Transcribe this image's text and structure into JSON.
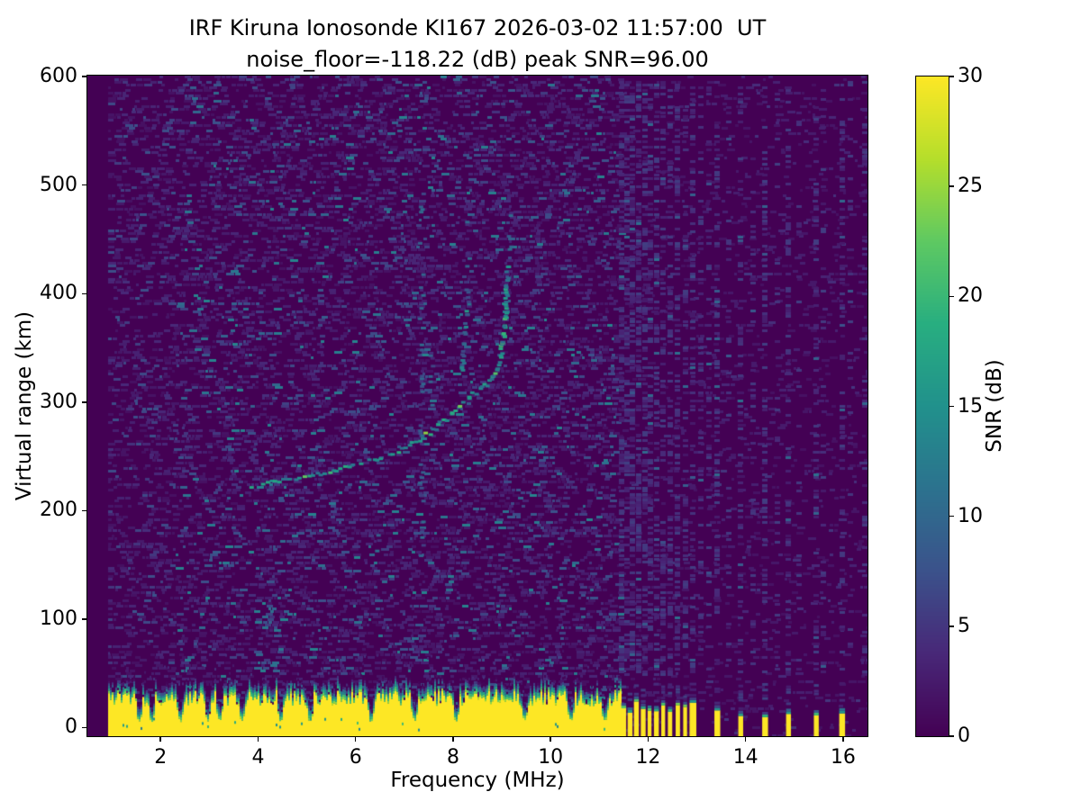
{
  "figure": {
    "background": "#ffffff",
    "text_color": "#000000"
  },
  "chart_data": {
    "type": "heatmap",
    "title": "IRF Kiruna Ionosonde KI167 2026-03-02 11:57:00  UT",
    "subtitle": "noise_floor=-118.22 (dB) peak SNR=96.00",
    "xlabel": "Frequency (MHz)",
    "ylabel": "Virtual range (km)",
    "xlim": [
      0.5,
      16.5
    ],
    "ylim": [
      -8,
      601
    ],
    "xticks": [
      2,
      4,
      6,
      8,
      10,
      12,
      14,
      16
    ],
    "yticks": [
      0,
      100,
      200,
      300,
      400,
      500,
      600
    ],
    "grid": false,
    "colormap": "viridis",
    "background_value_color": "#440154",
    "saturated_value_color": "#fde725",
    "colorbar": {
      "label": "SNR (dB)",
      "min": 0,
      "max": 30,
      "ticks": [
        0,
        5,
        10,
        15,
        20,
        25,
        30
      ],
      "position": "right"
    },
    "sounding": {
      "start_mhz": 0.93,
      "stop_mhz": 16.5,
      "quiet_above_mhz": 11.42,
      "low_f_bright_below_mhz": 2.3
    },
    "ionogram_traces": {
      "o_mode_f_layer": [
        [
          3.75,
          222
        ],
        [
          4.2,
          226
        ],
        [
          4.7,
          230
        ],
        [
          5.2,
          235
        ],
        [
          5.7,
          240
        ],
        [
          6.2,
          246
        ],
        [
          6.7,
          253
        ],
        [
          7.1,
          261
        ],
        [
          7.45,
          271
        ],
        [
          7.8,
          283
        ],
        [
          8.1,
          296
        ],
        [
          8.35,
          306
        ],
        [
          8.6,
          314
        ],
        [
          8.8,
          322
        ],
        [
          8.95,
          338
        ],
        [
          9.03,
          360
        ],
        [
          9.08,
          385
        ],
        [
          9.1,
          410
        ],
        [
          9.12,
          428
        ]
      ],
      "x_mode_f_layer": [
        [
          8.18,
          330
        ],
        [
          8.22,
          350
        ],
        [
          8.26,
          372
        ],
        [
          8.3,
          392
        ],
        [
          8.33,
          405
        ]
      ]
    },
    "echo_streaks": [
      {
        "freq_mhz": 7.35,
        "range_km": [
          150,
          500
        ],
        "density": 0.2
      },
      {
        "freq_mhz": 7.55,
        "range_km": [
          260,
          430
        ],
        "density": 0.16
      },
      {
        "freq_mhz": 8.3,
        "range_km": [
          400,
          470
        ],
        "density": 0.18
      },
      {
        "freq_mhz": 9.15,
        "range_km": [
          430,
          505
        ],
        "density": 0.16
      },
      {
        "freq_mhz": 6.45,
        "range_km": [
          140,
          230
        ],
        "density": 0.1
      }
    ],
    "ground_echo_band": {
      "solid_from_mhz": 0.93,
      "solid_to_mhz": 11.42,
      "mean_top_km": 30,
      "notch_freqs_mhz": [
        1.55,
        1.8,
        2.4,
        2.95,
        3.2,
        3.65,
        4.45,
        5.05,
        6.3,
        7.2,
        8.05,
        9.45,
        10.4,
        11.1
      ]
    },
    "rfi_comb_bars": [
      {
        "f": 11.5,
        "w": 0.1
      },
      {
        "f": 11.63,
        "w": 0.1
      },
      {
        "f": 11.76,
        "w": 0.1
      },
      {
        "f": 11.9,
        "w": 0.1
      },
      {
        "f": 12.03,
        "w": 0.08
      },
      {
        "f": 12.17,
        "w": 0.1
      },
      {
        "f": 12.31,
        "w": 0.08
      },
      {
        "f": 12.45,
        "w": 0.09
      },
      {
        "f": 12.61,
        "w": 0.09
      },
      {
        "f": 12.76,
        "w": 0.08
      },
      {
        "f": 12.92,
        "w": 0.14
      }
    ],
    "rfi_isolated_bars": [
      {
        "f": 13.42,
        "w": 0.12
      },
      {
        "f": 13.9,
        "w": 0.1
      },
      {
        "f": 14.4,
        "w": 0.12
      },
      {
        "f": 14.88,
        "w": 0.1
      },
      {
        "f": 15.45,
        "w": 0.1
      },
      {
        "f": 15.98,
        "w": 0.12
      }
    ],
    "rfi_columns": [
      {
        "f": 11.45,
        "d": 0.55
      },
      {
        "f": 11.56,
        "d": 0.5
      },
      {
        "f": 11.68,
        "d": 0.55
      },
      {
        "f": 11.8,
        "d": 0.5
      },
      {
        "f": 11.93,
        "d": 0.45
      },
      {
        "f": 12.05,
        "d": 0.4
      },
      {
        "f": 12.18,
        "d": 0.42
      },
      {
        "f": 12.31,
        "d": 0.38
      },
      {
        "f": 12.45,
        "d": 0.35
      },
      {
        "f": 12.6,
        "d": 0.38
      },
      {
        "f": 12.76,
        "d": 0.33
      },
      {
        "f": 12.92,
        "d": 0.36
      },
      {
        "f": 13.08,
        "d": 0.28
      },
      {
        "f": 13.25,
        "d": 0.2
      },
      {
        "f": 13.42,
        "d": 0.32
      },
      {
        "f": 13.65,
        "d": 0.16
      },
      {
        "f": 13.9,
        "d": 0.3
      },
      {
        "f": 14.15,
        "d": 0.16
      },
      {
        "f": 14.4,
        "d": 0.3
      },
      {
        "f": 14.65,
        "d": 0.14
      },
      {
        "f": 14.88,
        "d": 0.28
      },
      {
        "f": 15.1,
        "d": 0.16
      },
      {
        "f": 15.45,
        "d": 0.26
      },
      {
        "f": 15.6,
        "d": 0.12
      },
      {
        "f": 15.98,
        "d": 0.26
      },
      {
        "f": 16.15,
        "d": 0.14
      },
      {
        "f": 16.44,
        "d": 0.2
      }
    ]
  }
}
